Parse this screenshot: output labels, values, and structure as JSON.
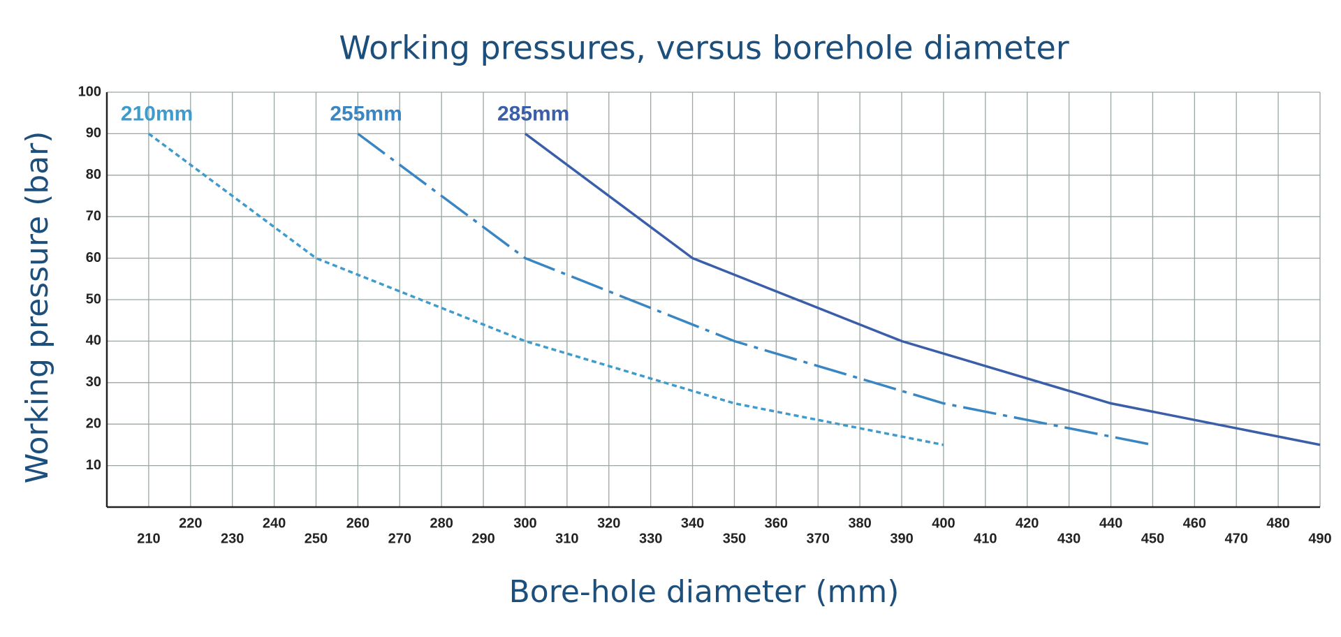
{
  "chart_data": {
    "type": "line",
    "title": "Working pressures, versus borehole diameter",
    "x_label": "Bore-hole diameter (mm)",
    "y_label": "Working pressure (bar)",
    "xlim": [
      200,
      490
    ],
    "ylim": [
      0,
      100
    ],
    "xticks": [
      210,
      220,
      230,
      240,
      250,
      260,
      270,
      280,
      290,
      300,
      310,
      320,
      330,
      340,
      350,
      360,
      370,
      380,
      390,
      400,
      410,
      420,
      430,
      440,
      450,
      460,
      470,
      480,
      490
    ],
    "yticks": [
      10,
      20,
      30,
      40,
      50,
      60,
      70,
      80,
      90,
      100
    ],
    "grid": true,
    "series": [
      {
        "name": "210mm",
        "color": "#3f9bcc",
        "linestyle": "dotted",
        "x": [
          210,
          250,
          300,
          350,
          400
        ],
        "values": [
          90,
          60,
          40,
          25,
          15
        ]
      },
      {
        "name": "255mm",
        "color": "#3a86c2",
        "linestyle": "dashdot",
        "x": [
          260,
          300,
          350,
          400,
          450
        ],
        "values": [
          90,
          60,
          40,
          25,
          15
        ]
      },
      {
        "name": "285mm",
        "color": "#3b5ea9",
        "linestyle": "solid",
        "x": [
          300,
          340,
          390,
          440,
          490
        ],
        "values": [
          90,
          60,
          40,
          25,
          15
        ]
      }
    ]
  }
}
